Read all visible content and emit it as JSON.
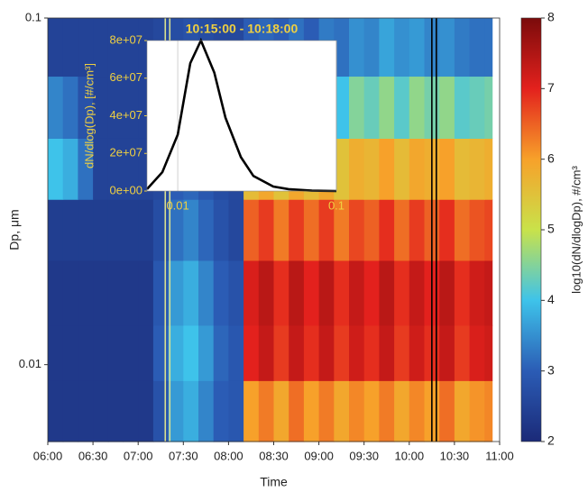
{
  "chart_data": [
    {
      "type": "heatmap",
      "x_label": "Time",
      "y_label": "Dp, μm",
      "colorbar_label": "log10(dN/dlogDp), #/cm³",
      "x_bins": [
        "06:00",
        "06:10",
        "06:20",
        "06:30",
        "06:40",
        "06:50",
        "07:00",
        "07:10",
        "07:20",
        "07:30",
        "07:40",
        "07:50",
        "08:00",
        "08:10",
        "08:20",
        "08:30",
        "08:40",
        "08:50",
        "09:00",
        "09:10",
        "09:20",
        "09:30",
        "09:40",
        "09:50",
        "10:00",
        "10:10",
        "10:20",
        "10:30",
        "10:40",
        "10:50",
        "10:55"
      ],
      "y_bins": [
        0.006,
        0.009,
        0.013,
        0.02,
        0.03,
        0.045,
        0.068,
        0.1
      ],
      "z": [
        [
          2.3,
          2.3,
          2.3,
          2.3,
          2.3,
          2.3,
          2.3,
          2.8,
          3.6,
          3.8,
          3.4,
          3.0,
          2.9,
          6.0,
          6.3,
          5.9,
          6.4,
          6.0,
          6.3,
          5.9,
          6.2,
          6.0,
          6.3,
          5.9,
          6.2,
          6.0,
          6.4,
          5.9,
          6.1,
          6.2
        ],
        [
          2.3,
          2.3,
          2.3,
          2.3,
          2.3,
          2.3,
          2.3,
          3.0,
          3.8,
          4.0,
          3.6,
          3.1,
          2.9,
          7.0,
          7.3,
          6.8,
          7.3,
          6.9,
          7.3,
          6.8,
          7.2,
          6.9,
          7.3,
          6.8,
          7.2,
          6.9,
          7.3,
          6.8,
          7.1,
          7.2
        ],
        [
          2.3,
          2.3,
          2.3,
          2.3,
          2.3,
          2.3,
          2.3,
          2.9,
          3.6,
          3.8,
          3.4,
          3.0,
          2.8,
          7.1,
          7.4,
          6.9,
          7.4,
          7.0,
          7.4,
          6.9,
          7.3,
          7.0,
          7.4,
          6.9,
          7.3,
          7.0,
          7.4,
          6.9,
          7.2,
          7.3
        ],
        [
          2.4,
          2.4,
          2.4,
          2.4,
          2.4,
          2.4,
          2.4,
          2.7,
          3.2,
          3.4,
          3.1,
          2.8,
          2.6,
          6.5,
          6.8,
          6.3,
          6.8,
          6.4,
          6.8,
          6.3,
          6.7,
          6.5,
          6.9,
          6.4,
          6.8,
          6.5,
          6.9,
          6.4,
          6.6,
          6.7
        ],
        [
          4.0,
          3.8,
          3.2,
          2.5,
          2.5,
          2.5,
          2.5,
          2.6,
          3.0,
          3.1,
          2.9,
          2.7,
          2.6,
          5.6,
          5.9,
          5.5,
          5.9,
          5.6,
          5.9,
          5.5,
          5.8,
          5.7,
          6.0,
          5.6,
          5.9,
          5.8,
          6.0,
          5.6,
          5.7,
          5.8
        ],
        [
          3.4,
          3.2,
          2.8,
          2.5,
          2.5,
          2.5,
          2.5,
          2.6,
          2.8,
          2.9,
          2.8,
          2.6,
          2.6,
          4.0,
          4.2,
          3.9,
          4.3,
          4.0,
          4.3,
          4.0,
          4.5,
          4.3,
          4.6,
          4.2,
          4.6,
          4.4,
          4.6,
          4.2,
          4.3,
          4.4
        ],
        [
          2.5,
          2.5,
          2.5,
          2.5,
          2.5,
          2.5,
          2.5,
          2.6,
          2.7,
          2.8,
          2.7,
          2.6,
          2.6,
          3.0,
          3.1,
          3.0,
          3.2,
          3.0,
          3.3,
          3.2,
          3.5,
          3.4,
          3.7,
          3.5,
          3.6,
          3.4,
          3.5,
          3.3,
          3.2,
          3.2
        ]
      ],
      "xlim": [
        "06:00",
        "11:00"
      ],
      "xticks": [
        "06:00",
        "06:30",
        "07:00",
        "07:30",
        "08:00",
        "08:30",
        "09:00",
        "09:30",
        "10:00",
        "10:30",
        "11:00"
      ],
      "ylim": [
        0.006,
        0.1
      ],
      "yticks": [
        0.01,
        0.1
      ],
      "log_y": true,
      "clim": [
        2,
        8
      ],
      "cticks": [
        2,
        3,
        4,
        5,
        6,
        7,
        8
      ],
      "colormap": [
        "#1b2a78",
        "#2b5cb5",
        "#3ec3ea",
        "#c9e24a",
        "#f7a12a",
        "#e3211d",
        "#7b0b0b"
      ],
      "markers": [
        {
          "x": "07:18",
          "color": "#d8e090"
        },
        {
          "x": "07:21",
          "color": "#d8e090"
        },
        {
          "x": "10:15",
          "color": "#000000"
        },
        {
          "x": "10:18",
          "color": "#000000"
        }
      ]
    },
    {
      "type": "line",
      "title": "10:15:00 - 10:18:00",
      "y_label": "dN/dlog(Dp), [#/cm³]",
      "x": [
        0.0064,
        0.008,
        0.01,
        0.012,
        0.014,
        0.017,
        0.02,
        0.025,
        0.03,
        0.04,
        0.05,
        0.07,
        0.1
      ],
      "values": [
        1000000,
        10000000,
        30000000,
        68000000,
        80000000,
        63000000,
        39000000,
        18000000,
        8000000,
        2400000,
        1000000,
        200000,
        0
      ],
      "color": "#000000",
      "text_color": "#f0d040",
      "xlim": [
        0.0064,
        0.1
      ],
      "ylim": [
        0,
        80000000
      ],
      "log_x": true,
      "xticks": [
        0.01,
        0.1
      ],
      "yticks": [
        {
          "value": 0,
          "label": "0e+00"
        },
        {
          "value": 20000000,
          "label": "2e+07"
        },
        {
          "value": 40000000,
          "label": "4e+07"
        },
        {
          "value": 60000000,
          "label": "6e+07"
        },
        {
          "value": 80000000,
          "label": "8e+07"
        }
      ],
      "grid": true
    }
  ]
}
